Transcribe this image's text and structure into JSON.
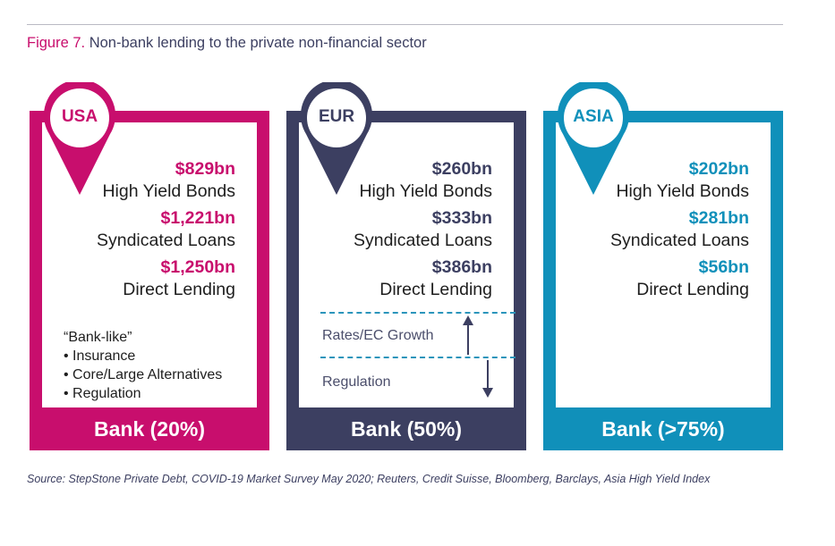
{
  "figure": {
    "number": "Figure 7.",
    "title": "Non-bank lending to the private non-financial sector"
  },
  "colors": {
    "usa": "#c80e6d",
    "eur": "#3c3f61",
    "asia": "#1090ba",
    "dashed_line": "#2b95bb"
  },
  "regions": [
    {
      "region": "USA",
      "high_yield_bonds": "$829bn",
      "high_yield_bonds_label": "High Yield Bonds",
      "syndicated_loans": "$1,221bn",
      "syndicated_loans_label": "Syndicated Loans",
      "direct_lending": "$1,250bn",
      "direct_lending_label": "Direct Lending",
      "bank": "Bank (20%)"
    },
    {
      "region": "EUR",
      "high_yield_bonds": "$260bn",
      "high_yield_bonds_label": "High Yield Bonds",
      "syndicated_loans": "$333bn",
      "syndicated_loans_label": "Syndicated Loans",
      "direct_lending": "$386bn",
      "direct_lending_label": "Direct Lending",
      "bank": "Bank (50%)"
    },
    {
      "region": "ASIA",
      "high_yield_bonds": "$202bn",
      "high_yield_bonds_label": "High Yield Bonds",
      "syndicated_loans": "$281bn",
      "syndicated_loans_label": "Syndicated Loans",
      "direct_lending": "$56bn",
      "direct_lending_label": "Direct Lending",
      "bank": "Bank (>75%)"
    }
  ],
  "usa_notes": {
    "heading": "“Bank-like”",
    "items": [
      "Insurance",
      "Core/Large Alternatives",
      "Regulation"
    ]
  },
  "eur_drivers": {
    "up": "Rates/EC Growth",
    "down": "Regulation"
  },
  "source": "Source: StepStone Private Debt, COVID-19 Market Survey May 2020; Reuters, Credit Suisse, Bloomberg, Barclays, Asia High Yield Index"
}
